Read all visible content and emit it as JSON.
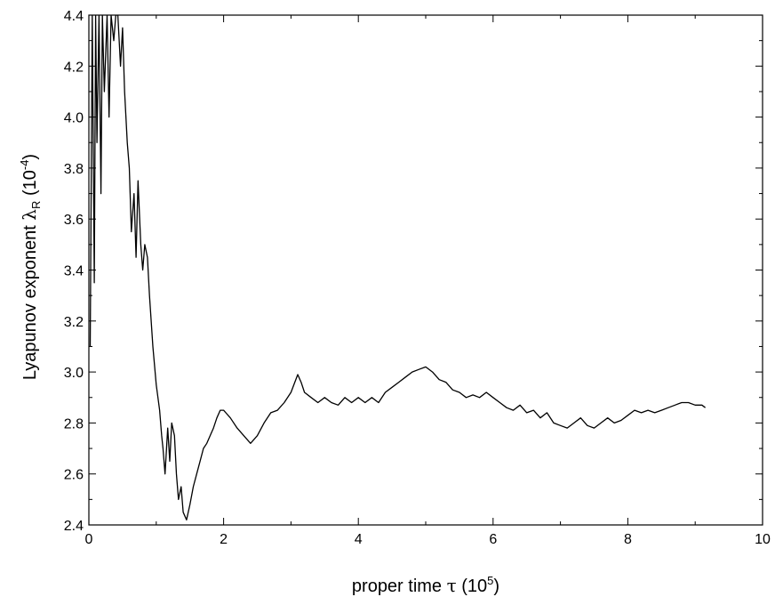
{
  "chart_data": {
    "type": "line",
    "xlabel": "proper time τ (10⁵)",
    "ylabel": "Lyapunov exponent λR (10⁻⁴)",
    "xlabel_parts": {
      "main": "proper time ",
      "symbol": "τ",
      "unit_open": " (10",
      "unit_exp": "5",
      "unit_close": ")"
    },
    "ylabel_parts": {
      "main": "Lyapunov exponent ",
      "symbol": "λ",
      "sub": "R",
      "unit_open": " (10",
      "unit_exp": "-4",
      "unit_close": ")"
    },
    "xlim": [
      0,
      10
    ],
    "ylim": [
      2.4,
      4.4
    ],
    "xticks": [
      0,
      2,
      4,
      6,
      8,
      10
    ],
    "xtick_labels": [
      "0",
      "2",
      "4",
      "6",
      "8",
      "10"
    ],
    "yticks": [
      2.4,
      2.6,
      2.8,
      3.0,
      3.2,
      3.4,
      3.6,
      3.8,
      4.0,
      4.2,
      4.4
    ],
    "ytick_labels": [
      "2.4",
      "2.6",
      "2.8",
      "3.0",
      "3.2",
      "3.4",
      "3.6",
      "3.8",
      "4.0",
      "4.2",
      "4.4"
    ],
    "grid": false,
    "series": [
      {
        "color": "#000000",
        "x": [
          0.02,
          0.05,
          0.08,
          0.1,
          0.12,
          0.15,
          0.18,
          0.2,
          0.23,
          0.27,
          0.3,
          0.33,
          0.37,
          0.4,
          0.43,
          0.47,
          0.5,
          0.53,
          0.57,
          0.6,
          0.63,
          0.67,
          0.7,
          0.73,
          0.77,
          0.8,
          0.83,
          0.87,
          0.9,
          0.95,
          1.0,
          1.05,
          1.08,
          1.1,
          1.13,
          1.17,
          1.2,
          1.23,
          1.27,
          1.3,
          1.33,
          1.37,
          1.4,
          1.45,
          1.5,
          1.55,
          1.6,
          1.65,
          1.7,
          1.75,
          1.8,
          1.85,
          1.9,
          1.95,
          2.0,
          2.1,
          2.2,
          2.3,
          2.4,
          2.5,
          2.6,
          2.7,
          2.8,
          2.9,
          3.0,
          3.1,
          3.15,
          3.2,
          3.3,
          3.4,
          3.5,
          3.6,
          3.7,
          3.8,
          3.9,
          4.0,
          4.1,
          4.2,
          4.3,
          4.4,
          4.5,
          4.6,
          4.7,
          4.8,
          4.9,
          5.0,
          5.1,
          5.2,
          5.3,
          5.4,
          5.5,
          5.6,
          5.7,
          5.8,
          5.9,
          6.0,
          6.1,
          6.2,
          6.3,
          6.4,
          6.5,
          6.6,
          6.7,
          6.8,
          6.9,
          7.0,
          7.1,
          7.2,
          7.3,
          7.4,
          7.5,
          7.6,
          7.7,
          7.8,
          7.9,
          8.0,
          8.1,
          8.2,
          8.3,
          8.4,
          8.5,
          8.6,
          8.7,
          8.8,
          8.9,
          9.0,
          9.1,
          9.15
        ],
        "y": [
          3.1,
          4.4,
          3.35,
          4.4,
          3.9,
          4.4,
          3.7,
          4.4,
          4.1,
          4.4,
          4.0,
          4.4,
          4.3,
          4.4,
          4.4,
          4.2,
          4.35,
          4.1,
          3.9,
          3.8,
          3.55,
          3.7,
          3.45,
          3.75,
          3.5,
          3.4,
          3.5,
          3.45,
          3.3,
          3.1,
          2.95,
          2.85,
          2.75,
          2.7,
          2.6,
          2.78,
          2.65,
          2.8,
          2.75,
          2.6,
          2.5,
          2.55,
          2.45,
          2.42,
          2.48,
          2.55,
          2.6,
          2.65,
          2.7,
          2.72,
          2.75,
          2.78,
          2.82,
          2.85,
          2.85,
          2.82,
          2.78,
          2.75,
          2.72,
          2.75,
          2.8,
          2.84,
          2.85,
          2.88,
          2.92,
          2.99,
          2.96,
          2.92,
          2.9,
          2.88,
          2.9,
          2.88,
          2.87,
          2.9,
          2.88,
          2.9,
          2.88,
          2.9,
          2.88,
          2.92,
          2.94,
          2.96,
          2.98,
          3.0,
          3.01,
          3.02,
          3.0,
          2.97,
          2.96,
          2.93,
          2.92,
          2.9,
          2.91,
          2.9,
          2.92,
          2.9,
          2.88,
          2.86,
          2.85,
          2.87,
          2.84,
          2.85,
          2.82,
          2.84,
          2.8,
          2.79,
          2.78,
          2.8,
          2.82,
          2.79,
          2.78,
          2.8,
          2.82,
          2.8,
          2.81,
          2.83,
          2.85,
          2.84,
          2.85,
          2.84,
          2.85,
          2.86,
          2.87,
          2.88,
          2.88,
          2.87,
          2.87,
          2.86
        ]
      }
    ]
  }
}
